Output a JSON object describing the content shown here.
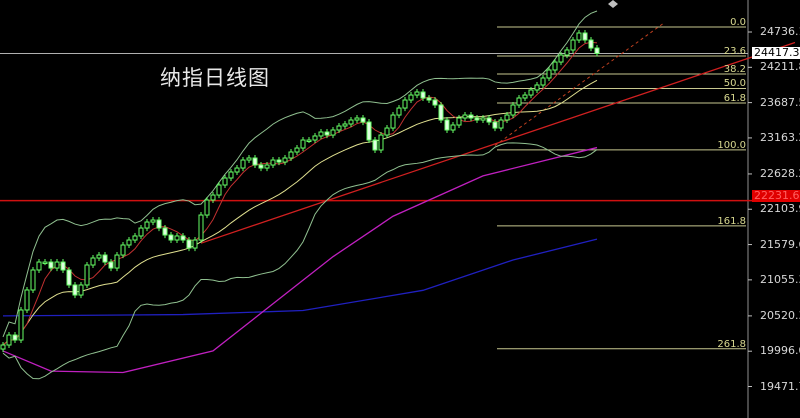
{
  "title": "纳指日线图",
  "colors": {
    "background": "#000000",
    "up": "#66ff66",
    "down": "#66ff66",
    "price_line": "#b0b0b0",
    "support_line": "#d01010",
    "fib": "#c8c890",
    "ma_slow": "#2020c0",
    "ma_mid": "#c020c0",
    "trend": "#d02020",
    "trend_dotted": "#c04020",
    "bands": "#90c090",
    "ma_short": "#e0e090",
    "ma_fast": "#c03030"
  },
  "chart_data": {
    "type": "candlestick",
    "title": "纳指日线图",
    "y_ticks": [
      "24736.10",
      "24211.80",
      "23687.50",
      "23163.20",
      "22628.20",
      "22103.90",
      "21579.60",
      "21055.30",
      "20520.30",
      "19996.00",
      "19471.70"
    ],
    "ylim": [
      19300,
      25050
    ],
    "current_price": "24417.33",
    "marked_level": "22231.67",
    "closes": [
      20088,
      20236,
      20162,
      20608,
      20905,
      21202,
      21320,
      21320,
      21231,
      21320,
      21202,
      20979,
      20830,
      20979,
      21276,
      21380,
      21424,
      21320,
      21231,
      21424,
      21573,
      21647,
      21707,
      21825,
      21914,
      21944,
      21825,
      21721,
      21647,
      21707,
      21647,
      21528,
      21647,
      22018,
      22241,
      22315,
      22464,
      22568,
      22657,
      22716,
      22835,
      22865,
      22761,
      22716,
      22761,
      22835,
      22805,
      22865,
      22954,
      23013,
      23132,
      23132,
      23192,
      23251,
      23206,
      23281,
      23340,
      23370,
      23429,
      23459,
      23399,
      23132,
      22984,
      23206,
      23310,
      23503,
      23607,
      23726,
      23800,
      23845,
      23756,
      23726,
      23652,
      23429,
      23281,
      23355,
      23459,
      23503,
      23459,
      23429,
      23459,
      23399,
      23310,
      23429,
      23503,
      23652,
      23756,
      23800,
      23875,
      23949,
      24053,
      24172,
      24290,
      24394,
      24469,
      24617,
      24721,
      24617,
      24498,
      24417
    ],
    "fibonacci": {
      "high": 24810,
      "low": 22985,
      "levels": [
        {
          "pct": 0,
          "label": "0.0"
        },
        {
          "pct": 23.6,
          "label": "23.6"
        },
        {
          "pct": 38.2,
          "label": "38.2"
        },
        {
          "pct": 50,
          "label": "50.0"
        },
        {
          "pct": 61.8,
          "label": "61.8"
        },
        {
          "pct": 100,
          "label": "100.0"
        },
        {
          "pct": 161.8,
          "label": "161.8"
        },
        {
          "pct": 261.8,
          "label": "261.8"
        }
      ]
    },
    "slow_ma": [
      [
        0,
        20520
      ],
      [
        30,
        20540
      ],
      [
        50,
        20600
      ],
      [
        70,
        20900
      ],
      [
        85,
        21350
      ],
      [
        99,
        21660
      ]
    ],
    "mid_ma": [
      [
        0,
        20000
      ],
      [
        8,
        19700
      ],
      [
        20,
        19680
      ],
      [
        35,
        20000
      ],
      [
        45,
        20700
      ],
      [
        55,
        21400
      ],
      [
        65,
        22000
      ],
      [
        80,
        22600
      ],
      [
        99,
        23020
      ]
    ],
    "trend_line": [
      [
        33,
        21600
      ],
      [
        132,
        24580
      ]
    ],
    "trend_line_dotted": [
      [
        82,
        23050
      ],
      [
        110,
        24860
      ]
    ]
  }
}
